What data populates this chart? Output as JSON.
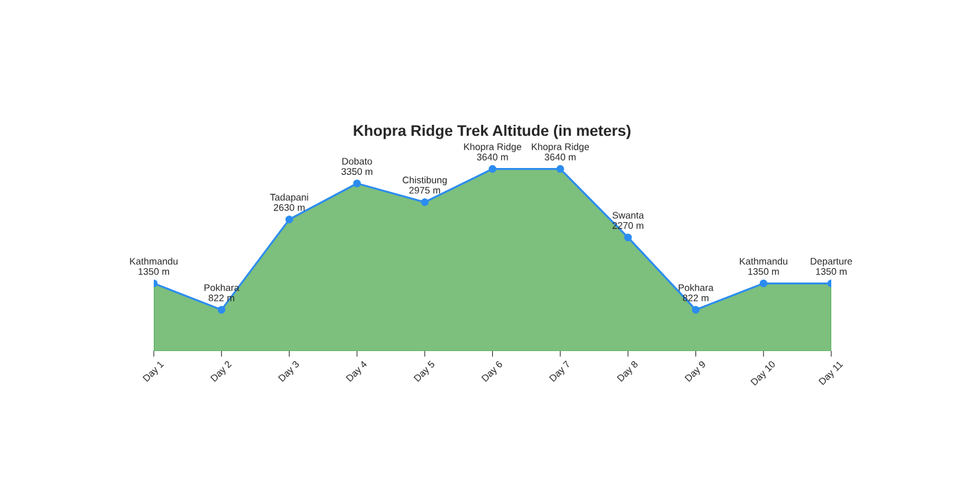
{
  "chart_data": {
    "type": "area",
    "title": "Khopra Ridge Trek Altitude (in meters)",
    "categories": [
      "Day 1",
      "Day 2",
      "Day 3",
      "Day 4",
      "Day 5",
      "Day 6",
      "Day 7",
      "Day 8",
      "Day 9",
      "Day 10",
      "Day 11"
    ],
    "series": [
      {
        "color": "#7dbf7d",
        "values": [
          1350,
          822,
          2630,
          3350,
          2975,
          3640,
          3640,
          2270,
          822,
          1350,
          1350
        ]
      },
      {
        "type": "line",
        "marker": "circle",
        "color": "#2b8cf0",
        "values": [
          1350,
          822,
          2630,
          3350,
          2975,
          3640,
          3640,
          2270,
          822,
          1350,
          1350
        ],
        "value_labels": [
          "Kathmandu\n1350 m",
          "Pokhara\n822 m",
          "Tadapani\n2630 m",
          "Dobato\n3350 m",
          "Chistibung\n2975 m",
          "Khopra Ridge\n3640 m",
          "Khopra Ridge\n3640 m",
          "Swanta\n2270 m",
          "Pokhara\n822 m",
          "Kathmandu\n1350 m",
          "Departure\n1350 m"
        ]
      }
    ],
    "grid": false,
    "legend": false
  }
}
